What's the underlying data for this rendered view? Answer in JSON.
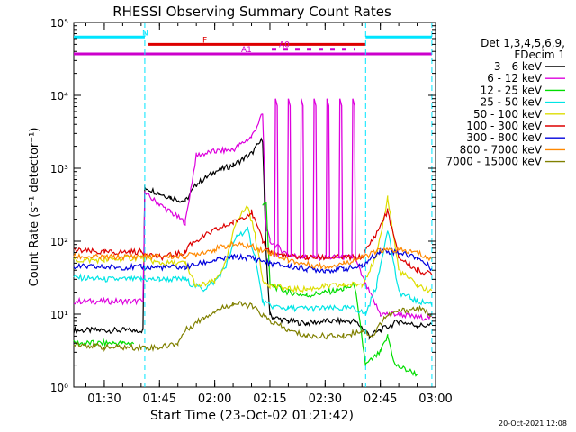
{
  "chart_data": {
    "type": "line",
    "title": "RHESSI Observing Summary Count Rates",
    "xlabel": "Start Time (23-Oct-02 01:21:42)",
    "ylabel": "Count Rate (s⁻¹ detector⁻¹)",
    "y_scale": "log",
    "ylim": [
      1,
      100000
    ],
    "xlim": [
      "01:21:42",
      "03:00:00"
    ],
    "x_ticks": [
      "01:30",
      "01:45",
      "02:00",
      "02:15",
      "02:30",
      "02:45",
      "03:00"
    ],
    "y_ticks": [
      "10⁰",
      "10¹",
      "10²",
      "10³",
      "10⁴",
      "10⁵"
    ],
    "grid": false,
    "legend_position": "right",
    "legend_header": [
      "Det 1,3,4,5,6,9,",
      "FDecim 1"
    ],
    "flags": [
      {
        "label": "N",
        "color": "#00e5ff",
        "segments": [
          [
            "01:21:42",
            "01:41:00"
          ],
          [
            "02:41:00",
            "02:59:00"
          ]
        ],
        "level": 63000
      },
      {
        "label": "F",
        "color": "#dd0000",
        "segments": [
          [
            "01:42:00",
            "02:41:00"
          ]
        ],
        "level": 50000
      },
      {
        "label": "A0",
        "color": "#cc00cc",
        "segments": [
          [
            "02:15:30",
            "02:38:00"
          ]
        ],
        "level": 43000,
        "dotted": true
      },
      {
        "label": "A1",
        "color": "#cc00cc",
        "segments": [
          [
            "01:21:42",
            "02:59:00"
          ]
        ],
        "level": 37000
      }
    ],
    "vlines": [
      "01:41:00",
      "02:41:00",
      "02:59:00"
    ],
    "series": [
      {
        "name": "3 - 6 keV",
        "color": "#000000",
        "x": [
          "01:21:42",
          "01:38:00",
          "01:40:30",
          "01:41:00",
          "01:45:00",
          "01:48:00",
          "01:52:00",
          "01:55:00",
          "02:00:00",
          "02:05:00",
          "02:10:00",
          "02:13:00",
          "02:14:00",
          "02:15:00",
          "02:16:00",
          "02:20:00",
          "02:25:00",
          "02:30:00",
          "02:35:00",
          "02:38:00",
          "02:41:00",
          "02:42:00",
          "02:45:00",
          "02:50:00",
          "02:55:00",
          "02:59:00"
        ],
        "y": [
          6,
          6,
          6,
          550,
          450,
          400,
          350,
          600,
          900,
          1100,
          1600,
          2500,
          60,
          10,
          9,
          8,
          7.5,
          8,
          8,
          8,
          6,
          5,
          6,
          8,
          7,
          7
        ]
      },
      {
        "name": "6 - 12 keV",
        "color": "#dd00dd",
        "x": [
          "01:21:42",
          "01:38:00",
          "01:40:30",
          "01:41:00",
          "01:45:00",
          "01:48:00",
          "01:52:00",
          "01:55:00",
          "02:00:00",
          "02:05:00",
          "02:10:00",
          "02:13:00",
          "02:14:00",
          "02:15:00",
          "02:20:00",
          "02:25:00",
          "02:30:00",
          "02:35:00",
          "02:38:00",
          "02:41:00",
          "02:45:00",
          "02:50:00",
          "02:55:00",
          "02:59:00"
        ],
        "y": [
          15,
          15,
          15,
          450,
          320,
          250,
          180,
          1500,
          1700,
          1800,
          2700,
          5500,
          150,
          100,
          65,
          60,
          60,
          60,
          60,
          25,
          10,
          10,
          9,
          9
        ]
      },
      {
        "name": "12 - 25 keV",
        "color": "#00dd00",
        "x": [
          "01:21:42",
          "01:35:00",
          "01:38:00",
          "01:41:00",
          "01:50:00",
          "01:52:00",
          "01:55:00",
          "02:00:00",
          "02:05:00",
          "02:10:00",
          "02:13:00",
          "02:14:00",
          "02:15:00",
          "02:20:00",
          "02:25:00",
          "02:30:00",
          "02:35:00",
          "02:38:00",
          "02:41:00",
          "02:45:00",
          "02:47:00",
          "02:49:00",
          "02:55:00"
        ],
        "y": [
          4,
          4,
          4,
          null,
          null,
          null,
          null,
          null,
          null,
          null,
          300,
          350,
          25,
          20,
          18,
          20,
          22,
          25,
          2,
          3,
          5,
          2,
          1.5
        ]
      },
      {
        "name": "25 - 50 keV",
        "color": "#00e5e5",
        "x": [
          "01:21:42",
          "01:30:00",
          "01:40:00",
          "01:45:00",
          "01:52:00",
          "01:54:00",
          "01:57:00",
          "02:00:00",
          "02:03:00",
          "02:06:00",
          "02:09:00",
          "02:11:00",
          "02:13:00",
          "02:15:00",
          "02:20:00",
          "02:25:00",
          "02:30:00",
          "02:35:00",
          "02:38:00",
          "02:41:00",
          "02:44:00",
          "02:47:00",
          "02:50:00",
          "02:55:00",
          "02:59:00"
        ],
        "y": [
          32,
          30,
          30,
          30,
          30,
          25,
          22,
          28,
          45,
          120,
          140,
          60,
          15,
          13,
          12,
          12,
          12,
          12,
          12,
          10,
          25,
          150,
          20,
          15,
          14
        ]
      },
      {
        "name": "50 - 100 keV",
        "color": "#dddd00",
        "x": [
          "01:21:42",
          "01:30:00",
          "01:40:00",
          "01:45:00",
          "01:52:00",
          "01:55:00",
          "02:00:00",
          "02:03:00",
          "02:06:00",
          "02:09:00",
          "02:11:00",
          "02:13:00",
          "02:15:00",
          "02:20:00",
          "02:25:00",
          "02:30:00",
          "02:35:00",
          "02:40:00",
          "02:44:00",
          "02:47:00",
          "02:50:00",
          "02:55:00",
          "02:59:00"
        ],
        "y": [
          55,
          55,
          60,
          50,
          50,
          24,
          28,
          50,
          200,
          300,
          120,
          30,
          25,
          22,
          22,
          24,
          25,
          26,
          60,
          400,
          40,
          25,
          20
        ]
      },
      {
        "name": "100 - 300 keV",
        "color": "#dd0000",
        "x": [
          "01:21:42",
          "01:30:00",
          "01:40:00",
          "01:45:00",
          "01:52:00",
          "01:53:00",
          "02:00:00",
          "02:05:00",
          "02:10:00",
          "02:13:00",
          "02:15:00",
          "02:20:00",
          "02:25:00",
          "02:30:00",
          "02:35:00",
          "02:40:00",
          "02:44:00",
          "02:47:00",
          "02:50:00",
          "02:55:00",
          "02:59:00"
        ],
        "y": [
          75,
          70,
          72,
          60,
          70,
          90,
          140,
          180,
          250,
          100,
          70,
          62,
          60,
          60,
          60,
          60,
          130,
          260,
          60,
          40,
          35
        ]
      },
      {
        "name": "300 - 800 keV",
        "color": "#0000dd",
        "x": [
          "01:21:42",
          "01:30:00",
          "01:40:00",
          "01:45:00",
          "01:52:00",
          "02:00:00",
          "02:05:00",
          "02:10:00",
          "02:15:00",
          "02:20:00",
          "02:25:00",
          "02:30:00",
          "02:35:00",
          "02:40:00",
          "02:45:00",
          "02:50:00",
          "02:55:00",
          "02:59:00"
        ],
        "y": [
          45,
          44,
          44,
          44,
          44,
          55,
          60,
          60,
          50,
          45,
          42,
          40,
          42,
          45,
          75,
          70,
          60,
          42
        ]
      },
      {
        "name": "800 - 7000 keV",
        "color": "#ff8800",
        "x": [
          "01:21:42",
          "01:30:00",
          "01:40:00",
          "01:45:00",
          "01:52:00",
          "02:00:00",
          "02:05:00",
          "02:10:00",
          "02:15:00",
          "02:20:00",
          "02:25:00",
          "02:30:00",
          "02:35:00",
          "02:40:00",
          "02:45:00",
          "02:50:00",
          "02:55:00",
          "02:59:00"
        ],
        "y": [
          62,
          60,
          62,
          62,
          62,
          78,
          90,
          85,
          70,
          55,
          48,
          45,
          50,
          60,
          75,
          75,
          70,
          55
        ]
      },
      {
        "name": "7000 - 15000 keV",
        "color": "#808000",
        "x": [
          "01:21:42",
          "01:30:00",
          "01:40:00",
          "01:45:00",
          "01:50:00",
          "01:52:00",
          "01:57:00",
          "02:00:00",
          "02:05:00",
          "02:10:00",
          "02:15:00",
          "02:20:00",
          "02:25:00",
          "02:30:00",
          "02:35:00",
          "02:40:00",
          "02:43:00",
          "02:46:00",
          "02:50:00",
          "02:55:00",
          "02:59:00"
        ],
        "y": [
          4,
          3.5,
          3.5,
          3.5,
          4,
          6,
          9,
          11,
          14,
          13,
          8,
          6,
          5,
          5,
          5,
          6,
          5,
          9,
          11,
          12,
          10
        ]
      }
    ],
    "spikes": {
      "color": "#dd00dd",
      "times": [
        "02:16:30",
        "02:20:00",
        "02:23:30",
        "02:27:00",
        "02:30:30",
        "02:34:00",
        "02:37:30"
      ],
      "peak": 9000,
      "base": 60
    }
  },
  "timestamp": "20-Oct-2021 12:08"
}
